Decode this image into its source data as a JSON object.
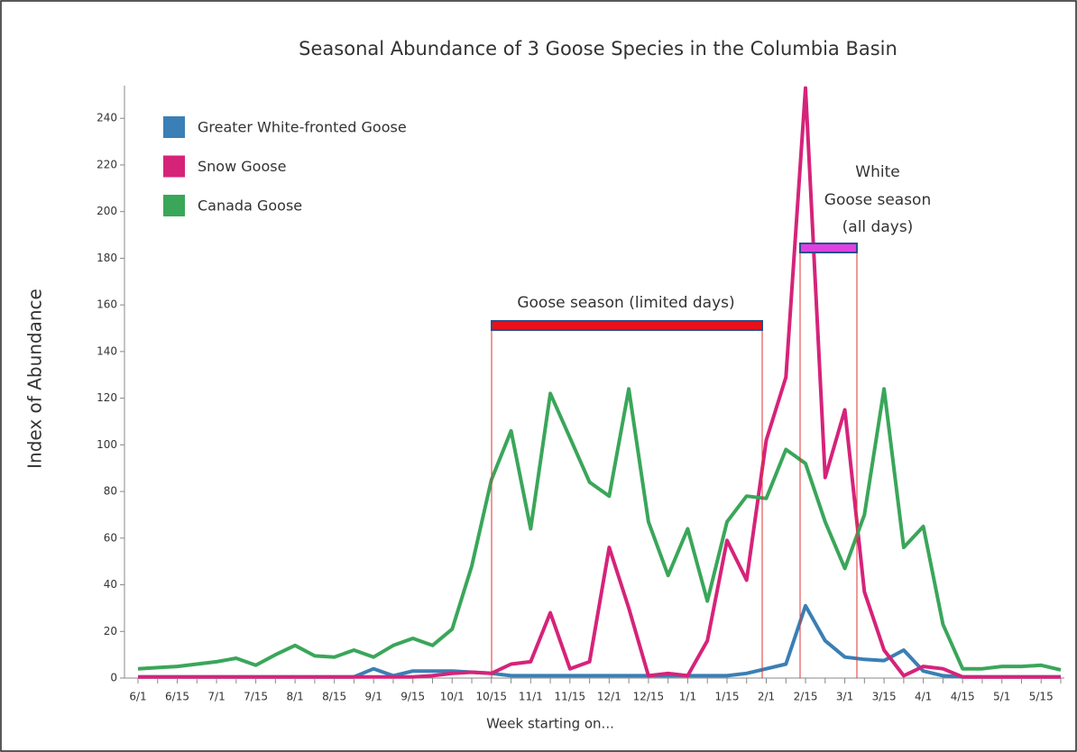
{
  "chart_data": {
    "type": "line",
    "title": "Seasonal Abundance of 3 Goose Species in the Columbia Basin",
    "x_label": "Week starting on...",
    "y_label": "Index of Abundance",
    "categories": [
      "6/1",
      null,
      "6/15",
      null,
      "7/1",
      null,
      "7/15",
      null,
      "8/1",
      null,
      "8/15",
      null,
      "9/1",
      null,
      "9/15",
      null,
      "10/1",
      null,
      "10/15",
      null,
      "11/1",
      null,
      "11/15",
      null,
      "12/1",
      null,
      "12/15",
      null,
      "1/1",
      null,
      "1/15",
      null,
      "2/1",
      null,
      "2/15",
      null,
      "3/1",
      null,
      "3/15",
      null,
      "4/1",
      null,
      "4/15",
      null,
      "5/1",
      null,
      "5/15",
      null
    ],
    "series": [
      {
        "name": "Greater White-fronted Goose",
        "color": "#3a7fb5",
        "values": [
          0.5,
          0.5,
          0.5,
          0.5,
          0.5,
          0.5,
          0.5,
          0.5,
          0.5,
          0.5,
          0.5,
          0.5,
          4,
          1,
          3,
          3,
          3,
          2.5,
          2,
          1,
          1,
          1,
          1,
          1,
          1,
          1,
          1,
          1,
          1,
          1,
          1,
          2,
          4,
          6,
          31,
          16,
          9,
          8,
          7.5,
          12,
          3,
          1,
          0.5,
          0.5,
          0.5,
          0.5,
          0.5,
          0.5
        ]
      },
      {
        "name": "Snow Goose",
        "color": "#d6237a",
        "values": [
          0.5,
          0.5,
          0.5,
          0.5,
          0.5,
          0.5,
          0.5,
          0.5,
          0.5,
          0.5,
          0.5,
          0.5,
          0.5,
          0.5,
          0.5,
          1,
          2,
          2.5,
          2,
          6,
          7,
          28,
          4,
          7,
          56,
          30,
          1,
          2,
          1,
          16,
          59,
          42,
          102,
          129,
          253,
          86,
          115,
          37,
          12,
          1,
          5,
          4,
          0.5,
          0.5,
          0.5,
          0.5,
          0.5,
          0.5
        ]
      },
      {
        "name": "Canada Goose",
        "color": "#3aa65a",
        "values": [
          4,
          4.5,
          5,
          6,
          7,
          8.5,
          5.5,
          10,
          14,
          9.5,
          9,
          12,
          9,
          14,
          17,
          14,
          21,
          48,
          85,
          106,
          64,
          122,
          103,
          84,
          78,
          124,
          67,
          44,
          64,
          33,
          67,
          78,
          77,
          98,
          92,
          67,
          47,
          70,
          124,
          56,
          65,
          23,
          4,
          4,
          5,
          5,
          5.5,
          3.5
        ]
      }
    ],
    "ylim": [
      0,
      254
    ],
    "yticks": [
      0,
      20,
      40,
      60,
      80,
      100,
      120,
      140,
      160,
      180,
      200,
      220,
      240
    ],
    "annotations": [
      {
        "text": [
          "Goose season (limited days)"
        ],
        "color": "#111111"
      },
      {
        "text": [
          "White",
          "Goose season",
          "(all days)"
        ],
        "color": "#e040e0"
      }
    ]
  }
}
